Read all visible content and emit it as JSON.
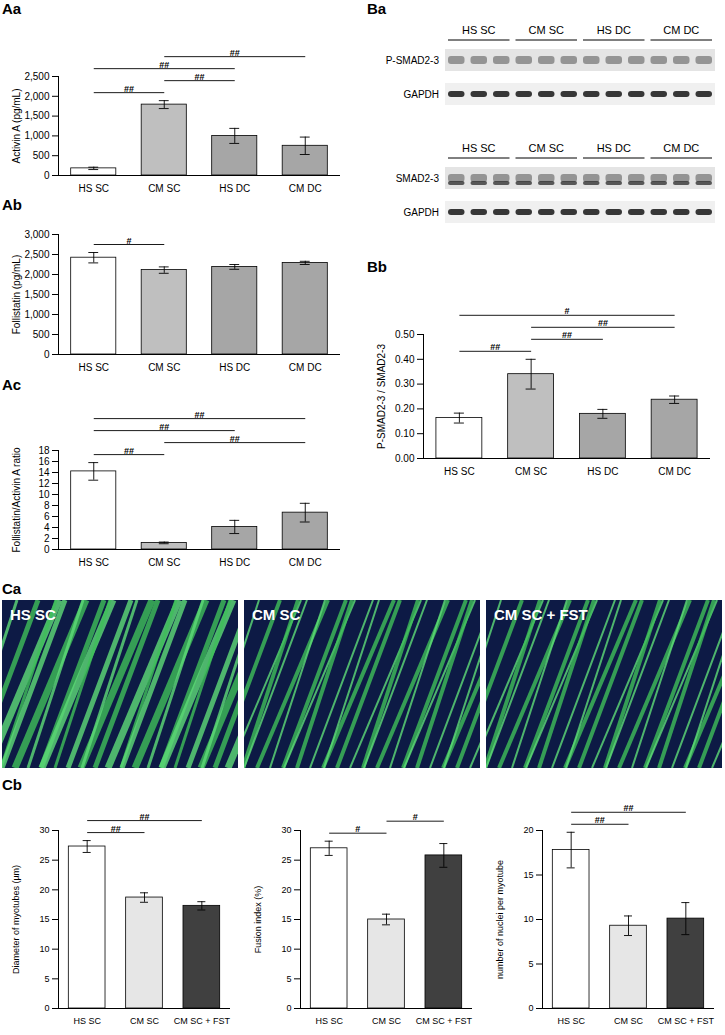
{
  "chart_data": [
    {
      "type": "bar",
      "title": "Aa",
      "categories": [
        "HS SC",
        "CM SC",
        "HS DC",
        "CM DC"
      ],
      "values": [
        180,
        1790,
        1000,
        750
      ],
      "errors": [
        30,
        100,
        190,
        220
      ],
      "colors": [
        "#ffffff",
        "#bfbfbf",
        "#a6a6a6",
        "#a6a6a6"
      ],
      "y_label": "Activin A (pg/mL)",
      "ylim": [
        0,
        2500
      ],
      "yticks": [
        0,
        500,
        1000,
        1500,
        2000,
        2500
      ],
      "annotations": [
        {
          "from": "HS SC",
          "to": "CM SC",
          "text": "##"
        },
        {
          "from": "CM SC",
          "to": "HS DC",
          "text": "##"
        },
        {
          "from": "HS SC",
          "to": "HS DC",
          "text": "##"
        },
        {
          "from": "CM SC",
          "to": "CM DC",
          "text": "##"
        }
      ]
    },
    {
      "type": "bar",
      "title": "Ab",
      "categories": [
        "HS SC",
        "CM SC",
        "HS DC",
        "CM DC"
      ],
      "values": [
        2420,
        2110,
        2190,
        2290
      ],
      "errors": [
        130,
        80,
        60,
        40
      ],
      "colors": [
        "#ffffff",
        "#bfbfbf",
        "#a6a6a6",
        "#a6a6a6"
      ],
      "y_label": "Follistatin (pg/mL)",
      "ylim": [
        0,
        3000
      ],
      "yticks": [
        0,
        500,
        1000,
        1500,
        2000,
        2500,
        3000
      ],
      "annotations": [
        {
          "from": "HS SC",
          "to": "CM SC",
          "text": "#"
        }
      ]
    },
    {
      "type": "bar",
      "title": "Ac",
      "categories": [
        "HS SC",
        "CM SC",
        "HS DC",
        "CM DC"
      ],
      "values": [
        14.2,
        1.2,
        4.1,
        6.7
      ],
      "errors": [
        1.6,
        0.15,
        1.2,
        1.7
      ],
      "colors": [
        "#ffffff",
        "#bfbfbf",
        "#a6a6a6",
        "#a6a6a6"
      ],
      "y_label": "Follistatin/Activin A ratio",
      "ylim": [
        0,
        18
      ],
      "yticks": [
        0,
        2,
        4,
        6,
        8,
        10,
        12,
        14,
        16,
        18
      ],
      "annotations": [
        {
          "from": "HS SC",
          "to": "CM SC",
          "text": "##"
        },
        {
          "from": "CM SC",
          "to": "CM DC",
          "text": "##"
        },
        {
          "from": "HS SC",
          "to": "HS DC",
          "text": "##"
        },
        {
          "from": "HS SC",
          "to": "CM DC",
          "text": "##"
        }
      ]
    },
    {
      "type": "bar",
      "title": "Bb",
      "categories": [
        "HS SC",
        "CM SC",
        "HS DC",
        "CM DC"
      ],
      "values": [
        0.163,
        0.34,
        0.18,
        0.237
      ],
      "errors": [
        0.02,
        0.06,
        0.018,
        0.015
      ],
      "colors": [
        "#ffffff",
        "#bfbfbf",
        "#a6a6a6",
        "#a6a6a6"
      ],
      "y_label": "P-SMAD2-3 / SMAD2-3",
      "ylim": [
        0,
        0.5
      ],
      "yticks": [
        0,
        0.1,
        0.2,
        0.3,
        0.4,
        0.5
      ],
      "annotations": [
        {
          "from": "HS SC",
          "to": "CM SC",
          "text": "##"
        },
        {
          "from": "CM SC",
          "to": "HS DC",
          "text": "##"
        },
        {
          "from": "CM SC",
          "to": "CM DC",
          "text": "##"
        },
        {
          "from": "HS SC",
          "to": "CM DC",
          "text": "#"
        }
      ]
    },
    {
      "type": "bar",
      "title": "Cb",
      "categories": [
        "HS SC",
        "CM SC",
        "CM SC + FST"
      ],
      "values": [
        27.3,
        18.7,
        17.3
      ],
      "errors": [
        1.0,
        0.8,
        0.7
      ],
      "colors": [
        "#ffffff",
        "#e6e6e6",
        "#404040"
      ],
      "y_label": "Diameter of myotubes (µm)",
      "ylim": [
        0,
        30
      ],
      "yticks": [
        0,
        5,
        10,
        15,
        20,
        25,
        30
      ],
      "annotations": [
        {
          "from": "HS SC",
          "to": "CM SC",
          "text": "##"
        },
        {
          "from": "HS SC",
          "to": "CM SC + FST",
          "text": "##"
        }
      ]
    },
    {
      "type": "bar",
      "categories": [
        "HS SC",
        "CM SC",
        "CM SC + FST"
      ],
      "values": [
        27,
        15,
        25.8
      ],
      "errors": [
        1.2,
        0.9,
        2.0
      ],
      "colors": [
        "#ffffff",
        "#e6e6e6",
        "#404040"
      ],
      "y_label": "Fusion index (%)",
      "ylim": [
        0,
        30
      ],
      "yticks": [
        0,
        5,
        10,
        15,
        20,
        25,
        30
      ],
      "annotations": [
        {
          "from": "HS SC",
          "to": "CM SC",
          "text": "#"
        },
        {
          "from": "CM SC",
          "to": "CM SC + FST",
          "text": "#"
        }
      ]
    },
    {
      "type": "bar",
      "categories": [
        "HS SC",
        "CM SC",
        "CM SC + FST"
      ],
      "values": [
        17.8,
        9.3,
        10.1
      ],
      "errors": [
        2.0,
        1.1,
        1.8
      ],
      "colors": [
        "#ffffff",
        "#e6e6e6",
        "#404040"
      ],
      "y_label": "number of nuclei per myotube",
      "ylim": [
        0,
        20
      ],
      "yticks": [
        0,
        5,
        10,
        15,
        20
      ],
      "annotations": [
        {
          "from": "HS SC",
          "to": "CM SC",
          "text": "##"
        },
        {
          "from": "HS SC",
          "to": "CM SC + FST",
          "text": "##"
        }
      ]
    }
  ],
  "blots": {
    "title": "Ba",
    "panels": [
      {
        "groups": [
          "HS SC",
          "CM SC",
          "HS DC",
          "CM DC"
        ],
        "rows": [
          "P-SMAD2-3",
          "GAPDH"
        ]
      },
      {
        "groups": [
          "HS SC",
          "CM SC",
          "HS DC",
          "CM DC"
        ],
        "rows": [
          "SMAD2-3",
          "GAPDH"
        ]
      }
    ]
  },
  "images": {
    "title": "Ca",
    "panels": [
      "HS SC",
      "CM SC",
      "CM SC + FST"
    ]
  }
}
